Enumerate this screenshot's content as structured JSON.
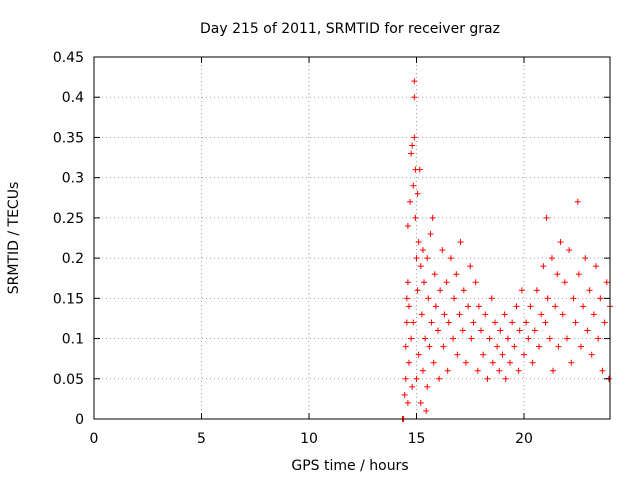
{
  "chart_data": {
    "type": "scatter",
    "title": "Day 215 of 2011, SRMTID for receiver graz",
    "xlabel": "GPS time / hours",
    "ylabel": "SRMTID / TECUs",
    "xlim": [
      0,
      24
    ],
    "ylim": [
      0,
      0.45
    ],
    "xticks": [
      0,
      5,
      10,
      15,
      20
    ],
    "xtick_labels": [
      "0",
      "5",
      "10",
      "15",
      "20"
    ],
    "yticks": [
      0,
      0.05,
      0.1,
      0.15,
      0.2,
      0.25,
      0.3,
      0.35,
      0.4,
      0.45
    ],
    "ytick_labels": [
      "0",
      "0.05",
      "0.1",
      "0.15",
      "0.2",
      "0.25",
      "0.3",
      "0.35",
      "0.4",
      "0.45"
    ],
    "grid": true,
    "marker": "+",
    "color": "#ff0000",
    "series": [
      {
        "name": "SRMTID",
        "points": [
          [
            14.35,
            0.0
          ],
          [
            14.4,
            0.0
          ],
          [
            14.45,
            0.03
          ],
          [
            14.5,
            0.05
          ],
          [
            14.5,
            0.09
          ],
          [
            14.55,
            0.12
          ],
          [
            14.55,
            0.15
          ],
          [
            14.6,
            0.02
          ],
          [
            14.6,
            0.17
          ],
          [
            14.6,
            0.24
          ],
          [
            14.65,
            0.07
          ],
          [
            14.65,
            0.14
          ],
          [
            14.7,
            0.27
          ],
          [
            14.75,
            0.1
          ],
          [
            14.75,
            0.33
          ],
          [
            14.8,
            0.34
          ],
          [
            14.8,
            0.04
          ],
          [
            14.85,
            0.29
          ],
          [
            14.85,
            0.12
          ],
          [
            14.9,
            0.42
          ],
          [
            14.9,
            0.4
          ],
          [
            14.9,
            0.35
          ],
          [
            14.95,
            0.31
          ],
          [
            14.95,
            0.25
          ],
          [
            15.0,
            0.2
          ],
          [
            15.0,
            0.05
          ],
          [
            15.05,
            0.28
          ],
          [
            15.05,
            0.16
          ],
          [
            15.1,
            0.22
          ],
          [
            15.1,
            0.08
          ],
          [
            15.15,
            0.31
          ],
          [
            15.2,
            0.19
          ],
          [
            15.2,
            0.02
          ],
          [
            15.25,
            0.13
          ],
          [
            15.3,
            0.21
          ],
          [
            15.3,
            0.06
          ],
          [
            15.35,
            0.17
          ],
          [
            15.4,
            0.1
          ],
          [
            15.45,
            0.01
          ],
          [
            15.5,
            0.2
          ],
          [
            15.5,
            0.04
          ],
          [
            15.55,
            0.15
          ],
          [
            15.6,
            0.09
          ],
          [
            15.65,
            0.23
          ],
          [
            15.7,
            0.12
          ],
          [
            15.75,
            0.25
          ],
          [
            15.8,
            0.07
          ],
          [
            15.85,
            0.18
          ],
          [
            15.9,
            0.14
          ],
          [
            16.0,
            0.11
          ],
          [
            16.05,
            0.05
          ],
          [
            16.1,
            0.16
          ],
          [
            16.2,
            0.21
          ],
          [
            16.25,
            0.09
          ],
          [
            16.3,
            0.13
          ],
          [
            16.4,
            0.17
          ],
          [
            16.45,
            0.06
          ],
          [
            16.5,
            0.12
          ],
          [
            16.6,
            0.2
          ],
          [
            16.7,
            0.1
          ],
          [
            16.75,
            0.15
          ],
          [
            16.85,
            0.18
          ],
          [
            16.9,
            0.08
          ],
          [
            17.0,
            0.13
          ],
          [
            17.05,
            0.22
          ],
          [
            17.15,
            0.11
          ],
          [
            17.2,
            0.16
          ],
          [
            17.3,
            0.07
          ],
          [
            17.4,
            0.14
          ],
          [
            17.5,
            0.19
          ],
          [
            17.55,
            0.1
          ],
          [
            17.65,
            0.12
          ],
          [
            17.75,
            0.17
          ],
          [
            17.85,
            0.06
          ],
          [
            17.9,
            0.14
          ],
          [
            18.0,
            0.11
          ],
          [
            18.1,
            0.08
          ],
          [
            18.2,
            0.13
          ],
          [
            18.3,
            0.05
          ],
          [
            18.4,
            0.1
          ],
          [
            18.5,
            0.15
          ],
          [
            18.55,
            0.07
          ],
          [
            18.65,
            0.12
          ],
          [
            18.75,
            0.09
          ],
          [
            18.85,
            0.06
          ],
          [
            18.9,
            0.11
          ],
          [
            19.0,
            0.08
          ],
          [
            19.1,
            0.13
          ],
          [
            19.15,
            0.05
          ],
          [
            19.25,
            0.1
          ],
          [
            19.35,
            0.07
          ],
          [
            19.45,
            0.12
          ],
          [
            19.55,
            0.09
          ],
          [
            19.65,
            0.14
          ],
          [
            19.75,
            0.06
          ],
          [
            19.8,
            0.11
          ],
          [
            19.9,
            0.16
          ],
          [
            20.0,
            0.08
          ],
          [
            20.1,
            0.12
          ],
          [
            20.2,
            0.1
          ],
          [
            20.3,
            0.14
          ],
          [
            20.4,
            0.07
          ],
          [
            20.5,
            0.11
          ],
          [
            20.6,
            0.16
          ],
          [
            20.7,
            0.09
          ],
          [
            20.8,
            0.13
          ],
          [
            20.9,
            0.19
          ],
          [
            21.0,
            0.12
          ],
          [
            21.05,
            0.25
          ],
          [
            21.1,
            0.15
          ],
          [
            21.2,
            0.1
          ],
          [
            21.3,
            0.2
          ],
          [
            21.35,
            0.06
          ],
          [
            21.45,
            0.14
          ],
          [
            21.55,
            0.18
          ],
          [
            21.6,
            0.09
          ],
          [
            21.7,
            0.22
          ],
          [
            21.8,
            0.13
          ],
          [
            21.9,
            0.17
          ],
          [
            22.0,
            0.1
          ],
          [
            22.1,
            0.21
          ],
          [
            22.2,
            0.07
          ],
          [
            22.3,
            0.15
          ],
          [
            22.4,
            0.12
          ],
          [
            22.5,
            0.27
          ],
          [
            22.55,
            0.18
          ],
          [
            22.65,
            0.09
          ],
          [
            22.75,
            0.14
          ],
          [
            22.85,
            0.2
          ],
          [
            22.95,
            0.11
          ],
          [
            23.05,
            0.16
          ],
          [
            23.15,
            0.08
          ],
          [
            23.25,
            0.13
          ],
          [
            23.35,
            0.19
          ],
          [
            23.45,
            0.1
          ],
          [
            23.55,
            0.15
          ],
          [
            23.65,
            0.06
          ],
          [
            23.75,
            0.12
          ],
          [
            23.85,
            0.17
          ],
          [
            23.95,
            0.05
          ],
          [
            24.0,
            0.14
          ]
        ]
      }
    ]
  }
}
